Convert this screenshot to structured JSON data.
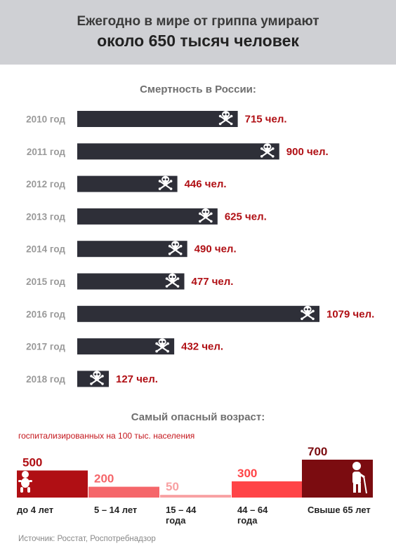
{
  "header": {
    "line1": "Ежегодно в мире от гриппа умирают",
    "line2": "около 650 тысяч человек"
  },
  "colors": {
    "bar": "#2e2f38",
    "value": "#b00f14",
    "age_bars": [
      "#b00f14",
      "#f5666a",
      "#f8a0a2",
      "#ff4447",
      "#7b0c10"
    ]
  },
  "chart_data": [
    {
      "type": "bar",
      "orientation": "horizontal",
      "title": "Смертность в России:",
      "categories": [
        "2010 год",
        "2011 год",
        "2012 год",
        "2013 год",
        "2014 год",
        "2015 год",
        "2016 год",
        "2017 год",
        "2018 год"
      ],
      "values": [
        715,
        900,
        446,
        625,
        490,
        477,
        1079,
        432,
        127
      ],
      "value_labels": [
        "715 чел.",
        "900 чел.",
        "446 чел.",
        "625 чел.",
        "490 чел.",
        "477 чел.",
        "1079 чел.",
        "432 чел.",
        "127 чел."
      ],
      "bar_icon": "skull-crossbones-icon",
      "grid": false
    },
    {
      "type": "bar",
      "title": "Самый опасный возраст:",
      "subtitle": "госпитализированных на 100 тыс. населения",
      "categories": [
        "до 4 лет",
        "5 – 14 лет",
        "15 – 44 года",
        "44 – 64 года",
        "Свыше 65 лет"
      ],
      "values": [
        500,
        200,
        50,
        300,
        700
      ],
      "icons": [
        "baby-icon",
        "",
        "",
        "",
        "elderly-person-icon"
      ],
      "grid": false
    }
  ],
  "source": "Источник: Росстат, Роспотребнадзор"
}
